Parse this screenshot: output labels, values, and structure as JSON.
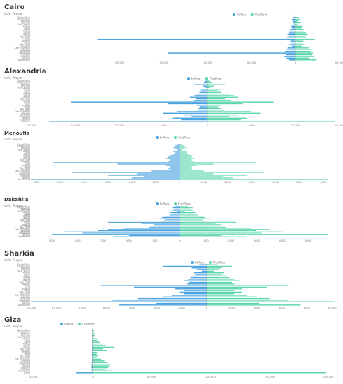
{
  "colors": {
    "inflow": "#4ba3df",
    "outflow": "#5fd6ae",
    "text": "#333333",
    "muted": "#777777",
    "axis": "#888888"
  },
  "legend": {
    "inflow": "Inflow",
    "outflow": "Outflow"
  },
  "chart_data": [
    {
      "type": "bar",
      "title": "Cairo",
      "subtitle": "Unit : People",
      "legend_position": "top-right",
      "xlim": [
        -300000,
        50000
      ],
      "tick_labels": [
        "200,000",
        "150,000",
        "100,000",
        "50,000",
        "0",
        "50,000"
      ],
      "categories": [
        "South Sinai",
        "North Sinai",
        "Matrouh",
        "Red Sea",
        "New Valley",
        "Aswan",
        "Luxor",
        "Qena",
        "Sohag",
        "Assiut",
        "Menia",
        "Beni Suef",
        "Fayoum",
        "Giza",
        "Ismailia",
        "Suez",
        "Port Said",
        "Damietta",
        "Kafr El Sheikh",
        "Gharbia",
        "Menoufia",
        "Qalyoubia",
        "Sharkia",
        "Dakahlia",
        "Beheira",
        "Alexandria"
      ],
      "series": [
        {
          "name": "Inflow",
          "values": [
            -3000,
            -4000,
            -2500,
            -3000,
            -2000,
            -5000,
            -4000,
            -6000,
            -7000,
            -8000,
            -9000,
            -8000,
            -10000,
            -225000,
            -6000,
            -5000,
            -7000,
            -4000,
            -9000,
            -10000,
            -12000,
            -145000,
            -11000,
            -13000,
            -10000,
            -8000
          ]
        },
        {
          "name": "Outflow",
          "values": [
            4000,
            5000,
            3000,
            6000,
            2500,
            8000,
            7000,
            9000,
            10000,
            12000,
            14000,
            11000,
            13000,
            22000,
            9000,
            8000,
            10000,
            7000,
            15000,
            18000,
            17000,
            20000,
            19000,
            21000,
            16000,
            24000
          ]
        }
      ]
    },
    {
      "type": "bar",
      "title": "Alexandria",
      "subtitle": "Unit : People",
      "legend_position": "top-right",
      "xlim": [
        -20000,
        15000
      ],
      "tick_labels": [
        "20,000",
        "15,000",
        "10,000",
        "5000",
        "0",
        "5000",
        "10,000",
        "15,000"
      ],
      "categories": [
        "South Sinai",
        "North Sinai",
        "Matrouh",
        "Red Sea",
        "New Valley",
        "Aswan",
        "Luxor",
        "Qena",
        "Sohag",
        "Assiut",
        "Menia",
        "Beni Suef",
        "Fayoum",
        "Cairo",
        "Giza",
        "Ismailia",
        "Suez",
        "Port Said",
        "Damietta",
        "Kafr El Sheikh",
        "Gharbia",
        "Menoufia",
        "Qalyoubia",
        "Sharkia",
        "Dakahlia",
        "Beheira"
      ],
      "series": [
        {
          "name": "Inflow",
          "values": [
            -300,
            -400,
            -1500,
            -500,
            -200,
            -800,
            -700,
            -900,
            -1200,
            -1500,
            -2000,
            -1300,
            -1600,
            -15500,
            -4500,
            -1200,
            -900,
            -1000,
            -1100,
            -3500,
            -5000,
            -2600,
            -1800,
            -4000,
            -3000,
            -18000
          ]
        },
        {
          "name": "Outflow",
          "values": [
            300,
            500,
            2000,
            700,
            300,
            1500,
            1200,
            1500,
            2500,
            3000,
            3500,
            2000,
            2600,
            7500,
            4000,
            1500,
            1200,
            1500,
            1800,
            5000,
            6000,
            3500,
            2500,
            4500,
            3800,
            14500
          ]
        }
      ]
    },
    {
      "type": "bar",
      "title": "Menoufia",
      "subtitle": "Unit : People",
      "legend_position": "top-right",
      "xlim": [
        -6200,
        6200
      ],
      "tick_labels": [
        "6000",
        "5000",
        "4000",
        "3000",
        "2000",
        "1000",
        "0",
        "1000",
        "2000",
        "3000",
        "4000",
        "5000",
        "6000"
      ],
      "categories": [
        "South Sinai",
        "North Sinai",
        "Matrouh",
        "Red Sea",
        "New Valley",
        "Aswan",
        "Luxor",
        "Qena",
        "Sohag",
        "Assiut",
        "Menia",
        "Beni Suef",
        "Fayoum",
        "Cairo",
        "Giza",
        "Ismailia",
        "Suez",
        "Port Said",
        "Damietta",
        "Kafr El Sheikh",
        "Gharbia",
        "Qalyoubia",
        "Sharkia",
        "Dakahlia",
        "Beheira",
        "Alexandria"
      ],
      "series": [
        {
          "name": "Inflow",
          "values": [
            -100,
            -200,
            -300,
            -200,
            -100,
            -300,
            -200,
            -300,
            -400,
            -500,
            -600,
            -400,
            -500,
            -5300,
            -2600,
            -600,
            -400,
            -500,
            -400,
            -1200,
            -4500,
            -1800,
            -3000,
            -1500,
            -2000,
            -6200
          ]
        },
        {
          "name": "Outflow",
          "values": [
            100,
            200,
            300,
            200,
            100,
            300,
            300,
            400,
            500,
            500,
            600,
            500,
            600,
            3200,
            1400,
            700,
            500,
            500,
            500,
            1000,
            3500,
            1400,
            2800,
            1800,
            2200,
            6200
          ]
        }
      ]
    },
    {
      "type": "bar",
      "title": "Dakahlia",
      "subtitle": "Unit : People",
      "legend_position": "top-right",
      "xlim": [
        -5800,
        5800
      ],
      "tick_labels": [
        "5000",
        "4000",
        "3000",
        "2000",
        "1000",
        "0",
        "1000",
        "2000",
        "3000",
        "4000",
        "5000"
      ],
      "categories": [
        "South Sinai",
        "North Sinai",
        "Matrouh",
        "Red Sea",
        "New Valley",
        "Aswan",
        "Luxor",
        "Qena",
        "Sohag",
        "Assiut",
        "Menia",
        "Beni Suef",
        "Fayoum",
        "Cairo",
        "Giza",
        "Ismailia",
        "Suez",
        "Port Said",
        "Damietta",
        "Kafr El Sheikh",
        "Gharbia",
        "Menoufia",
        "Qalyoubia",
        "Sharkia",
        "Beheira",
        "Alexandria"
      ],
      "series": [
        {
          "name": "Inflow",
          "values": [
            -200,
            -300,
            -200,
            -300,
            -100,
            -400,
            -300,
            -400,
            -600,
            -700,
            -800,
            -600,
            -700,
            -2800,
            -1500,
            -1000,
            -800,
            -1200,
            -2200,
            -2800,
            -3200,
            -4500,
            -3800,
            -5000,
            -2000,
            -2600
          ]
        },
        {
          "name": "Outflow",
          "values": [
            300,
            500,
            400,
            500,
            200,
            600,
            500,
            700,
            900,
            1000,
            1200,
            900,
            1000,
            2200,
            1400,
            1600,
            1300,
            1800,
            2800,
            3500,
            3000,
            4000,
            3200,
            5800,
            1600,
            2600
          ]
        }
      ]
    },
    {
      "type": "bar",
      "title": "Sharkia",
      "subtitle": "Unit : People",
      "legend_position": "top-right",
      "xlim": [
        -14000,
        10600
      ],
      "tick_labels": [
        "14,000",
        "12,000",
        "10,000",
        "8000",
        "6000",
        "4000",
        "2000",
        "0",
        "2000",
        "4000",
        "6000",
        "8000",
        "10,000"
      ],
      "categories": [
        "South Sinai",
        "North Sinai",
        "Matrouh",
        "Red Sea",
        "New Valley",
        "Aswan",
        "Luxor",
        "Qena",
        "Sohag",
        "Assiut",
        "Menia",
        "Beni Suef",
        "Fayoum",
        "Cairo",
        "Giza",
        "Ismailia",
        "Suez",
        "Port Said",
        "Damietta",
        "Kafr El Sheikh",
        "Gharbia",
        "Menoufia",
        "Qalyoubia",
        "Dakahlia",
        "Beheira",
        "Alexandria"
      ],
      "series": [
        {
          "name": "Inflow",
          "values": [
            -600,
            -3500,
            -1200,
            -800,
            -400,
            -1000,
            -900,
            -1100,
            -1300,
            -1500,
            -1800,
            -1400,
            -1600,
            -8500,
            -5800,
            -2500,
            -1800,
            -2200,
            -1800,
            -2800,
            -3500,
            -5500,
            -7500,
            -14000,
            -4000,
            -7000
          ]
        },
        {
          "name": "Outflow",
          "values": [
            800,
            2000,
            1200,
            1000,
            600,
            1400,
            1200,
            1500,
            1800,
            2200,
            2600,
            2000,
            2200,
            6500,
            4800,
            2800,
            2200,
            2800,
            2200,
            3200,
            4000,
            5000,
            6500,
            10200,
            4200,
            7500
          ]
        }
      ]
    },
    {
      "type": "bar",
      "title": "Giza",
      "subtitle": "Unit : People",
      "legend_position": "top-left",
      "xlim": [
        -52000,
        200000
      ],
      "tick_labels": [
        "50,000",
        "0",
        "50,000",
        "100,000",
        "150,000",
        "200,000"
      ],
      "categories": [
        "South Sinai",
        "North Sinai",
        "Matrouh",
        "Red Sea",
        "New Valley",
        "Aswan",
        "Luxor",
        "Qena",
        "Sohag",
        "Assiut",
        "Menia",
        "Beni Suef",
        "Fayoum",
        "Ismailia",
        "Suez",
        "Port Said",
        "Damietta",
        "Kafr El Sheikh",
        "Gharbia",
        "Menoufia",
        "Qalyoubia",
        "Sharkia",
        "Dakahlia",
        "Beheira",
        "Alexandria",
        "Cairo"
      ],
      "series": [
        {
          "name": "Inflow",
          "values": [
            -300,
            -400,
            -300,
            -400,
            -200,
            -500,
            -400,
            -600,
            -800,
            -900,
            -1000,
            -800,
            -900,
            -600,
            -500,
            -600,
            -500,
            -800,
            -1000,
            -1200,
            -1500,
            -1400,
            -1300,
            -1100,
            -1600,
            -14000
          ]
        },
        {
          "name": "Outflow",
          "values": [
            1000,
            2000,
            1500,
            2000,
            1500,
            5000,
            4000,
            6000,
            9000,
            11000,
            18000,
            9000,
            12000,
            4000,
            3500,
            4500,
            3500,
            7000,
            10000,
            12000,
            15000,
            14000,
            13000,
            11000,
            16000,
            198000
          ]
        }
      ]
    }
  ]
}
